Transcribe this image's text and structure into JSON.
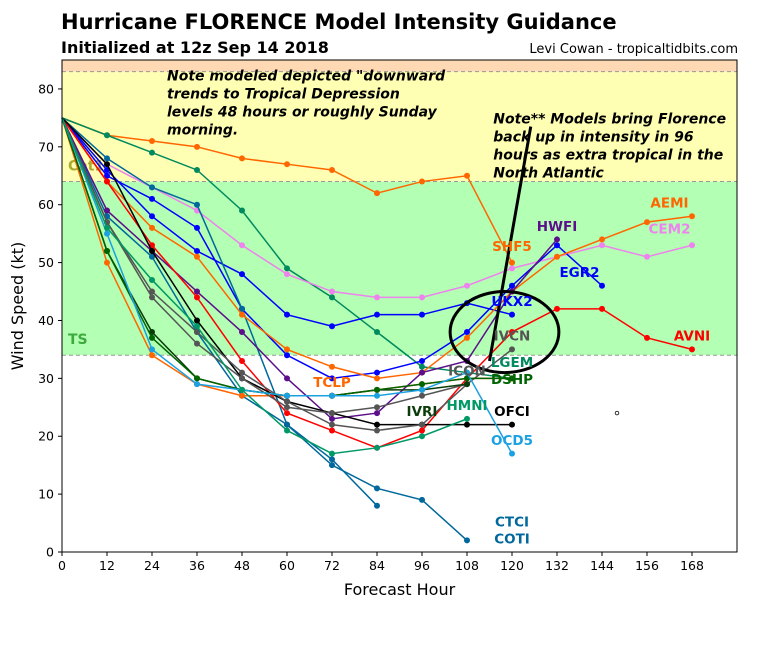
{
  "header": {
    "title": "Hurricane FLORENCE Model Intensity Guidance",
    "subtitle": "Initialized at 12z Sep 14 2018",
    "credit": "Levi Cowan - tropicaltidbits.com"
  },
  "chart_data": {
    "type": "line",
    "title": "Hurricane FLORENCE Model Intensity Guidance",
    "xlabel": "Forecast Hour",
    "ylabel": "Wind Speed (kt)",
    "xlim": [
      0,
      180
    ],
    "ylim": [
      0,
      85
    ],
    "xticks": [
      0,
      12,
      24,
      36,
      48,
      60,
      72,
      84,
      96,
      108,
      120,
      132,
      144,
      156,
      168
    ],
    "yticks": [
      0,
      10,
      20,
      30,
      40,
      50,
      60,
      70,
      80
    ],
    "grid": false,
    "bands": [
      {
        "label": "TS",
        "from": 34,
        "to": 64,
        "color": "#b3ffb3",
        "label_color": "#3caa3c"
      },
      {
        "label": "Cat1",
        "from": 64,
        "to": 83,
        "color": "#ffffb3",
        "label_color": "#aaaa33"
      },
      {
        "label": "",
        "from": 83,
        "to": 85,
        "color": "#ffd9b3",
        "label_color": "#ffd9b3"
      }
    ],
    "series": [
      {
        "name": "SHF5",
        "color": "#ff6600",
        "x": [
          0,
          12,
          24,
          36,
          48,
          60,
          72,
          84,
          96,
          108,
          120
        ],
        "y": [
          75,
          72,
          71,
          70,
          68,
          67,
          66,
          62,
          64,
          65,
          50
        ],
        "label_at": [
          120,
          52
        ]
      },
      {
        "name": "LGEM",
        "color": "#008a5e",
        "x": [
          0,
          12,
          24,
          36,
          48,
          60,
          72,
          84,
          96,
          108,
          120
        ],
        "y": [
          75,
          72,
          69,
          66,
          59,
          49,
          44,
          38,
          32,
          31,
          30
        ],
        "label_at": [
          120,
          32
        ]
      },
      {
        "name": "CEM2",
        "color": "#ee82ee",
        "x": [
          0,
          12,
          24,
          36,
          48,
          60,
          72,
          84,
          96,
          108,
          120,
          132,
          144,
          156,
          168
        ],
        "y": [
          75,
          67,
          63,
          59,
          53,
          48,
          45,
          44,
          44,
          46,
          49,
          51,
          53,
          51,
          53
        ],
        "label_at": [
          162,
          55
        ]
      },
      {
        "name": "UKX2",
        "color": "#0000ff",
        "x": [
          0,
          12,
          24,
          36,
          48,
          60,
          72,
          84,
          96,
          108,
          120
        ],
        "y": [
          75,
          66,
          58,
          52,
          48,
          41,
          39,
          41,
          41,
          43,
          41
        ],
        "label_at": [
          120,
          42.5
        ]
      },
      {
        "name": "EGR2",
        "color": "#0000ff",
        "x": [
          0,
          12,
          24,
          36,
          48,
          60,
          72,
          84,
          96,
          108,
          120,
          132,
          144
        ],
        "y": [
          75,
          65,
          61,
          56,
          42,
          34,
          30,
          31,
          33,
          38,
          46,
          53,
          46
        ],
        "label_at": [
          138,
          47.5
        ]
      },
      {
        "name": "COTI",
        "color": "#00689c",
        "x": [
          0,
          12,
          24,
          36,
          48,
          60,
          72,
          84,
          96,
          108
        ],
        "y": [
          75,
          68,
          63,
          60,
          42,
          22,
          15,
          11,
          9,
          2
        ],
        "label_at": [
          120,
          1.5
        ]
      },
      {
        "name": "CTCI",
        "color": "#00689c",
        "x": [
          0,
          12,
          24,
          36,
          48,
          60,
          72,
          84
        ],
        "y": [
          75,
          58,
          51,
          38,
          27,
          22,
          16,
          8
        ],
        "label_at": [
          120,
          1.5
        ]
      },
      {
        "name": "AEMI",
        "color": "#ff6600",
        "x": [
          0,
          12,
          24,
          36,
          48,
          60,
          72,
          84,
          96,
          108,
          120,
          132,
          144,
          156,
          168
        ],
        "y": [
          75,
          64,
          56,
          51,
          41,
          35,
          32,
          30,
          31,
          37,
          45,
          51,
          54,
          57,
          58
        ],
        "label_at": [
          162,
          59.5
        ]
      },
      {
        "name": "TCLP",
        "color": "#ff6600",
        "x": [
          0,
          12,
          24,
          36,
          48,
          60,
          72,
          84,
          96,
          108,
          120
        ],
        "y": [
          75,
          50,
          34,
          29,
          27,
          27,
          27,
          28,
          29,
          30,
          30
        ],
        "label_at": [
          72,
          28.5
        ]
      },
      {
        "name": "HWFI",
        "color": "#5c0e8b",
        "x": [
          0,
          12,
          24,
          36,
          48,
          60,
          72,
          84,
          96,
          108,
          120,
          132
        ],
        "y": [
          75,
          59,
          52,
          45,
          38,
          30,
          23,
          24,
          31,
          33,
          45,
          54
        ],
        "label_at": [
          132,
          55.5
        ]
      },
      {
        "name": "AVNI",
        "color": "#ff0000",
        "x": [
          0,
          12,
          24,
          36,
          48,
          60,
          72,
          84,
          96,
          108,
          120,
          132,
          144,
          156,
          168
        ],
        "y": [
          75,
          64,
          53,
          44,
          33,
          24,
          21,
          18,
          21,
          30,
          38,
          42,
          42,
          37,
          35
        ],
        "label_at": [
          168,
          36.5
        ]
      },
      {
        "name": "OFCI",
        "color": "#000000",
        "x": [
          0,
          12,
          24,
          36,
          48,
          60,
          72,
          84,
          96,
          108,
          120
        ],
        "y": [
          75,
          67,
          52,
          40,
          30,
          26,
          24,
          22,
          22,
          22,
          22
        ],
        "label_at": [
          120,
          23.5
        ]
      },
      {
        "name": "IVCN",
        "color": "#555555",
        "x": [
          0,
          12,
          24,
          36,
          48,
          60,
          72,
          84,
          96,
          108,
          120
        ],
        "y": [
          75,
          57,
          45,
          38,
          31,
          26,
          22,
          21,
          22,
          29,
          35
        ],
        "label_at": [
          120,
          36.5
        ]
      },
      {
        "name": "ICON",
        "color": "#555555",
        "x": [
          0,
          12,
          24,
          36,
          48,
          60,
          72,
          84,
          96,
          108
        ],
        "y": [
          75,
          57,
          44,
          36,
          30,
          25,
          24,
          25,
          27,
          29
        ],
        "label_at": [
          108,
          30.5
        ]
      },
      {
        "name": "IVRI",
        "color": "#0a3d0a",
        "x": [
          0,
          12,
          24,
          36,
          48,
          60,
          72,
          84,
          96,
          108
        ],
        "y": [
          75,
          52,
          38,
          30,
          28,
          27,
          27,
          28,
          28,
          29
        ],
        "label_at": [
          96,
          23.5
        ]
      },
      {
        "name": "DSHP",
        "color": "#006400",
        "x": [
          0,
          12,
          24,
          36,
          48,
          60,
          72,
          84,
          96,
          108,
          120
        ],
        "y": [
          75,
          52,
          37,
          30,
          28,
          27,
          27,
          28,
          29,
          30,
          30
        ],
        "label_at": [
          120,
          32
        ]
      },
      {
        "name": "OCD5",
        "color": "#1ba1e2",
        "x": [
          0,
          12,
          24,
          36,
          48,
          60,
          72,
          84,
          96,
          108,
          120
        ],
        "y": [
          75,
          55,
          35,
          29,
          28,
          27,
          27,
          27,
          28,
          31,
          17
        ],
        "label_at": [
          120,
          18.5
        ]
      },
      {
        "name": "HMNI",
        "color": "#009966",
        "x": [
          0,
          12,
          24,
          36,
          48,
          60,
          72,
          84,
          96,
          108
        ],
        "y": [
          75,
          56,
          47,
          39,
          28,
          21,
          17,
          18,
          20,
          23
        ],
        "label_at": [
          108,
          24.5
        ]
      }
    ],
    "annotations": [
      {
        "text_lines": [
          "Note modeled depicted \"downward",
          "trends to Tropical Depression",
          "levels 48 hours or roughly Sunday",
          "morning."
        ],
        "at": [
          28,
          81.5
        ]
      },
      {
        "text_lines": [
          "Note** Models bring Florence",
          "back up in intensity in 96",
          "hours as extra tropical in the",
          "North Atlantic"
        ],
        "at": [
          115,
          74
        ]
      }
    ],
    "ellipse": {
      "center": [
        118,
        38
      ],
      "rx_hours": 14.5,
      "ry_kt": 7
    },
    "pointer_line": {
      "from": [
        125,
        73.5
      ],
      "to": [
        114,
        33
      ]
    },
    "stray_marker": [
      148,
      24
    ]
  }
}
